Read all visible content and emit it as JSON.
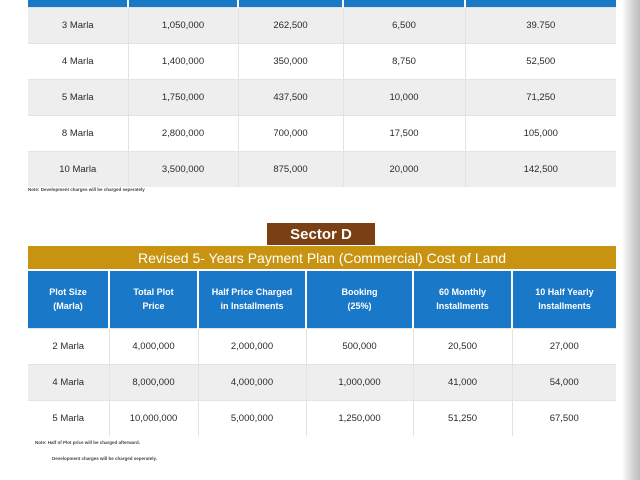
{
  "top_table": {
    "rows": [
      [
        "3 Marla",
        "1,050,000",
        "262,500",
        "6,500",
        "39.750"
      ],
      [
        "4 Marla",
        "1,400,000",
        "350,000",
        "8,750",
        "52,500"
      ],
      [
        "5 Marla",
        "1,750,000",
        "437,500",
        "10,000",
        "71,250"
      ],
      [
        "8 Marla",
        "2,800,000",
        "700,000",
        "17,500",
        "105,000"
      ],
      [
        "10 Marla",
        "3,500,000",
        "875,000",
        "20,000",
        "142,500"
      ]
    ],
    "note": "Note: Development charges will be charged seperately"
  },
  "sector": {
    "label": "Sector D",
    "title": "Revised 5- Years Payment Plan (Commercial) Cost of Land"
  },
  "bottom_table": {
    "headers": [
      [
        "Plot Size",
        "(Marla)"
      ],
      [
        "Total Plot",
        "Price"
      ],
      [
        "Half Price Charged",
        "in Installments"
      ],
      [
        "Booking",
        "(25%)"
      ],
      [
        "60 Monthly",
        "Installments"
      ],
      [
        "10 Half Yearly",
        "Installments"
      ]
    ],
    "rows": [
      [
        "2 Marla",
        "4,000,000",
        "2,000,000",
        "500,000",
        "20,500",
        "27,000"
      ],
      [
        "4 Marla",
        "8,000,000",
        "4,000,000",
        "1,000,000",
        "41,000",
        "54,000"
      ],
      [
        "5 Marla",
        "10,000,000",
        "5,000,000",
        "1,250,000",
        "51,250",
        "67,500"
      ]
    ],
    "note_1": "Note: Half of Plot price will be charged afterward.",
    "note_2": "Development charges will be charged seperately."
  },
  "colors": {
    "header_blue": "#1a78c8",
    "sector_brown": "#7a3f12",
    "title_gold": "#c79310",
    "row_alt": "#eeeeee"
  }
}
